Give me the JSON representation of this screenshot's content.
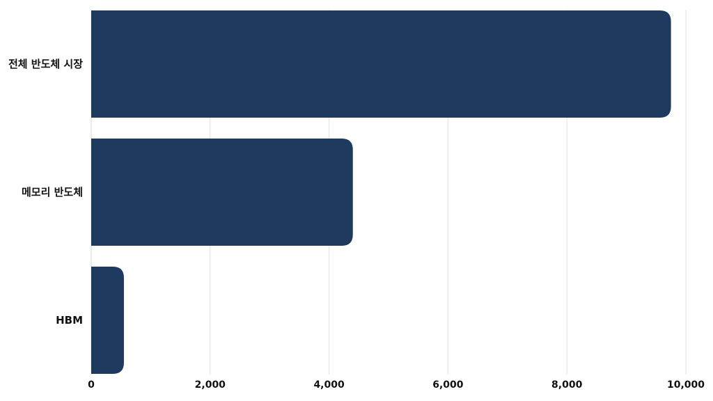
{
  "chart_data": {
    "type": "bar",
    "orientation": "horizontal",
    "title": "",
    "xlabel": "",
    "ylabel": "",
    "categories": [
      "전체 반도체 시장",
      "메모리 반도체",
      "HBM"
    ],
    "values": [
      9750,
      4400,
      550
    ],
    "xlim": [
      0,
      10000
    ],
    "x_ticks": [
      0,
      2000,
      4000,
      6000,
      8000,
      10000
    ],
    "x_tick_labels": [
      "0",
      "2,000",
      "4,000",
      "6,000",
      "8,000",
      "10,000"
    ],
    "grid": "vertical",
    "legend": "none",
    "bar_color": "#1f3a5f"
  }
}
